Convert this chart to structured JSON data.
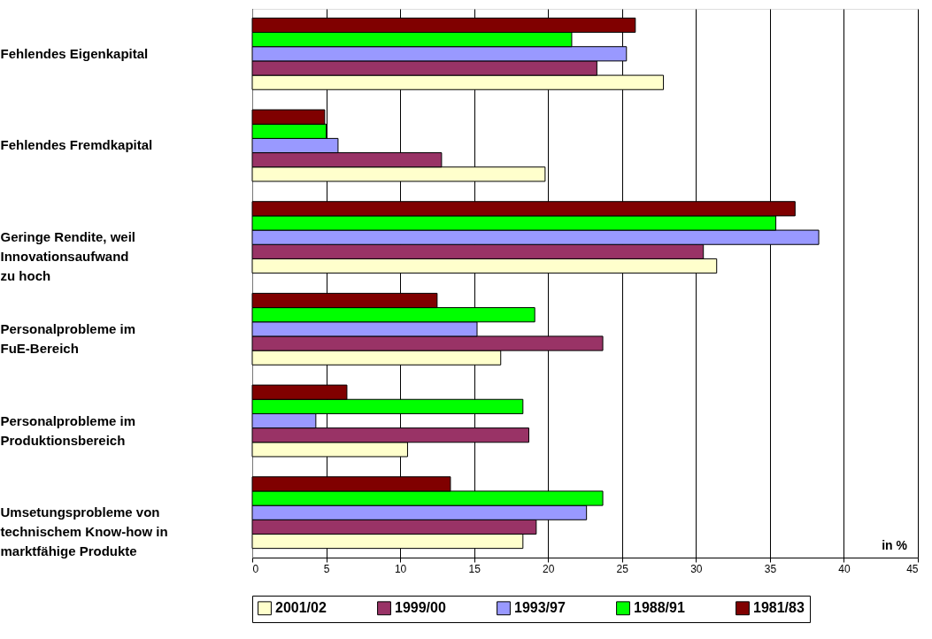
{
  "chart_data": {
    "type": "bar",
    "orientation": "horizontal",
    "categories": [
      "Fehlendes Eigenkapital",
      "Fehlendes Fremdkapital",
      "Geringe Rendite, weil\nInnovationsaufwand\nzu hoch",
      "Personalprobleme im\nFuE-Bereich",
      "Personalprobleme im\nProduktionsbereich",
      "Umsetungsprobleme von\ntechnischem Know-how in\nmarktfähige Produkte"
    ],
    "series": [
      {
        "name": "2001/02",
        "color": "#ffffcc",
        "values": [
          27.8,
          19.8,
          31.4,
          16.8,
          10.5,
          18.3
        ]
      },
      {
        "name": "1999/00",
        "color": "#993366",
        "values": [
          23.3,
          12.8,
          30.5,
          23.7,
          18.7,
          19.2
        ]
      },
      {
        "name": "1993/97",
        "color": "#9999ff",
        "values": [
          25.3,
          5.8,
          38.3,
          15.2,
          4.3,
          22.6
        ]
      },
      {
        "name": "1988/91",
        "color": "#00ff00",
        "values": [
          21.6,
          5.0,
          35.4,
          19.1,
          18.3,
          23.7
        ]
      },
      {
        "name": "1981/83",
        "color": "#800000",
        "values": [
          25.9,
          4.9,
          36.7,
          12.5,
          6.4,
          13.4
        ]
      }
    ],
    "xlabel": "in %",
    "xlim": [
      0,
      45
    ],
    "xticks": [
      0,
      5,
      10,
      15,
      20,
      25,
      30,
      35,
      40,
      45
    ],
    "grid": "x",
    "legend": "bottom"
  }
}
